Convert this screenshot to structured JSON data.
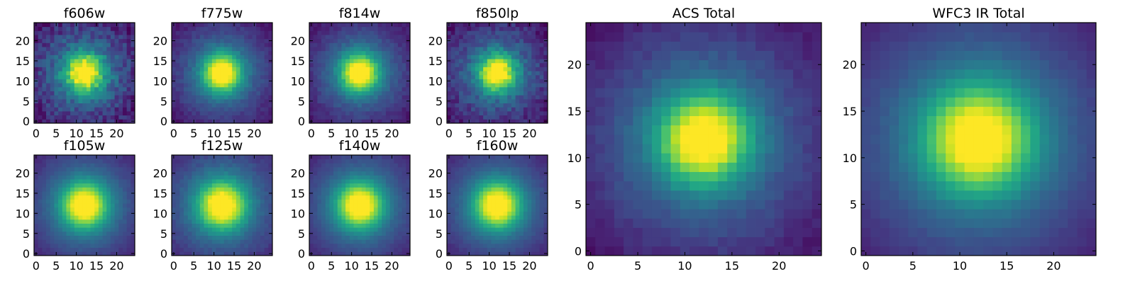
{
  "chart_data": [
    {
      "type": "heatmap",
      "title": "f606w",
      "xticks": [
        "0",
        "5",
        "10",
        "15",
        "20"
      ],
      "yticks": [
        "0",
        "5",
        "10",
        "15",
        "20"
      ],
      "xlim": [
        -0.5,
        24.5
      ],
      "ylim": [
        -0.5,
        24.5
      ],
      "grid": false,
      "colormap": "viridis",
      "peak_center": [
        12,
        12
      ],
      "core_width": 3.0,
      "noise": 0.1
    },
    {
      "type": "heatmap",
      "title": "f775w",
      "xticks": [
        "0",
        "5",
        "10",
        "15",
        "20"
      ],
      "yticks": [
        "0",
        "5",
        "10",
        "15",
        "20"
      ],
      "xlim": [
        -0.5,
        24.5
      ],
      "ylim": [
        -0.5,
        24.5
      ],
      "grid": false,
      "colormap": "viridis",
      "peak_center": [
        12,
        12
      ],
      "core_width": 3.0,
      "noise": 0.04
    },
    {
      "type": "heatmap",
      "title": "f814w",
      "xticks": [
        "0",
        "5",
        "10",
        "15",
        "20"
      ],
      "yticks": [
        "0",
        "5",
        "10",
        "15",
        "20"
      ],
      "xlim": [
        -0.5,
        24.5
      ],
      "ylim": [
        -0.5,
        24.5
      ],
      "grid": false,
      "colormap": "viridis",
      "peak_center": [
        12,
        12
      ],
      "core_width": 3.0,
      "noise": 0.04
    },
    {
      "type": "heatmap",
      "title": "f850lp",
      "xticks": [
        "0",
        "5",
        "10",
        "15",
        "20"
      ],
      "yticks": [
        "0",
        "5",
        "10",
        "15",
        "20"
      ],
      "xlim": [
        -0.5,
        24.5
      ],
      "ylim": [
        -0.5,
        24.5
      ],
      "grid": false,
      "colormap": "viridis",
      "peak_center": [
        12,
        12
      ],
      "core_width": 2.9,
      "noise": 0.08
    },
    {
      "type": "heatmap",
      "title": "f105w",
      "xticks": [
        "0",
        "5",
        "10",
        "15",
        "20"
      ],
      "yticks": [
        "0",
        "5",
        "10",
        "15",
        "20"
      ],
      "xlim": [
        -0.5,
        24.5
      ],
      "ylim": [
        -0.5,
        24.5
      ],
      "grid": false,
      "colormap": "viridis",
      "peak_center": [
        12,
        12
      ],
      "core_width": 3.6,
      "noise": 0.02
    },
    {
      "type": "heatmap",
      "title": "f125w",
      "xticks": [
        "0",
        "5",
        "10",
        "15",
        "20"
      ],
      "yticks": [
        "0",
        "5",
        "10",
        "15",
        "20"
      ],
      "xlim": [
        -0.5,
        24.5
      ],
      "ylim": [
        -0.5,
        24.5
      ],
      "grid": false,
      "colormap": "viridis",
      "peak_center": [
        12,
        12
      ],
      "core_width": 3.8,
      "noise": 0.03
    },
    {
      "type": "heatmap",
      "title": "f140w",
      "xticks": [
        "0",
        "5",
        "10",
        "15",
        "20"
      ],
      "yticks": [
        "0",
        "5",
        "10",
        "15",
        "20"
      ],
      "xlim": [
        -0.5,
        24.5
      ],
      "ylim": [
        -0.5,
        24.5
      ],
      "grid": false,
      "colormap": "viridis",
      "peak_center": [
        12,
        12
      ],
      "core_width": 3.6,
      "noise": 0.02
    },
    {
      "type": "heatmap",
      "title": "f160w",
      "xticks": [
        "0",
        "5",
        "10",
        "15",
        "20"
      ],
      "yticks": [
        "0",
        "5",
        "10",
        "15",
        "20"
      ],
      "xlim": [
        -0.5,
        24.5
      ],
      "ylim": [
        -0.5,
        24.5
      ],
      "grid": false,
      "colormap": "viridis",
      "peak_center": [
        12,
        12
      ],
      "core_width": 3.6,
      "noise": 0.02
    },
    {
      "type": "heatmap",
      "title": "ACS Total",
      "xticks": [
        "0",
        "5",
        "10",
        "15",
        "20"
      ],
      "yticks": [
        "0",
        "5",
        "10",
        "15",
        "20"
      ],
      "xlim": [
        -0.5,
        24.5
      ],
      "ylim": [
        -0.5,
        24.5
      ],
      "grid": false,
      "colormap": "viridis",
      "peak_center": [
        12,
        12
      ],
      "core_width": 3.0,
      "noise": 0.03
    },
    {
      "type": "heatmap",
      "title": "WFC3 IR Total",
      "xticks": [
        "0",
        "5",
        "10",
        "15",
        "20"
      ],
      "yticks": [
        "0",
        "5",
        "10",
        "15",
        "20"
      ],
      "xlim": [
        -0.5,
        24.5
      ],
      "ylim": [
        -0.5,
        24.5
      ],
      "grid": false,
      "colormap": "viridis",
      "peak_center": [
        12,
        12
      ],
      "core_width": 3.6,
      "noise": 0.015
    }
  ]
}
